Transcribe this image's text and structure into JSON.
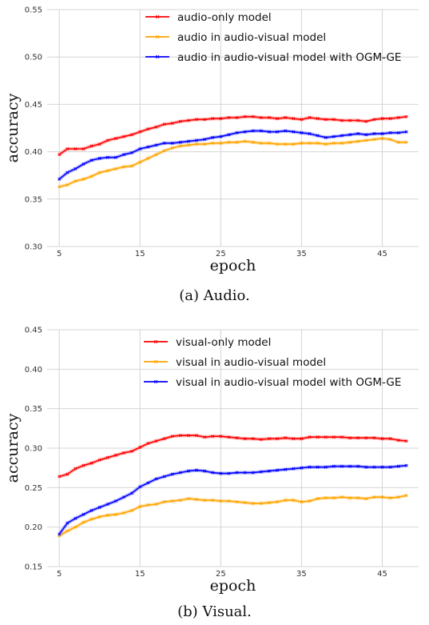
{
  "chart_data": [
    {
      "type": "line",
      "caption": "(a) Audio.",
      "xlabel": "epoch",
      "ylabel": "accuracy",
      "xlim": [
        3.5,
        49.5
      ],
      "ylim": [
        0.3,
        0.55
      ],
      "xticks": [
        "5",
        "15",
        "25",
        "35",
        "45"
      ],
      "yticks": [
        "0.30",
        "0.35",
        "0.40",
        "0.45",
        "0.50",
        "0.55"
      ],
      "grid": true,
      "legend_position": "top",
      "x": [
        5,
        6,
        7,
        8,
        9,
        10,
        11,
        12,
        13,
        14,
        15,
        16,
        17,
        18,
        19,
        20,
        21,
        22,
        23,
        24,
        25,
        26,
        27,
        28,
        29,
        30,
        31,
        32,
        33,
        34,
        35,
        36,
        37,
        38,
        39,
        40,
        41,
        42,
        43,
        44,
        45,
        46,
        47,
        48
      ],
      "series": [
        {
          "name": "audio-only model",
          "color": "#ff0000",
          "values": [
            0.397,
            0.403,
            0.403,
            0.403,
            0.406,
            0.408,
            0.412,
            0.414,
            0.416,
            0.418,
            0.421,
            0.424,
            0.426,
            0.429,
            0.43,
            0.432,
            0.433,
            0.434,
            0.434,
            0.435,
            0.435,
            0.436,
            0.436,
            0.437,
            0.437,
            0.436,
            0.436,
            0.435,
            0.436,
            0.435,
            0.434,
            0.436,
            0.435,
            0.434,
            0.434,
            0.433,
            0.433,
            0.433,
            0.432,
            0.434,
            0.435,
            0.435,
            0.436,
            0.437
          ]
        },
        {
          "name": "audio in audio-visual model",
          "color": "#ffa500",
          "values": [
            0.363,
            0.365,
            0.369,
            0.371,
            0.374,
            0.378,
            0.38,
            0.382,
            0.384,
            0.385,
            0.389,
            0.393,
            0.397,
            0.401,
            0.404,
            0.406,
            0.407,
            0.408,
            0.408,
            0.409,
            0.409,
            0.41,
            0.41,
            0.411,
            0.41,
            0.409,
            0.409,
            0.408,
            0.408,
            0.408,
            0.409,
            0.409,
            0.409,
            0.408,
            0.409,
            0.409,
            0.41,
            0.411,
            0.412,
            0.413,
            0.414,
            0.413,
            0.41,
            0.41
          ]
        },
        {
          "name": "audio in audio-visual model with OGM-GE",
          "color": "#0000ff",
          "values": [
            0.371,
            0.378,
            0.382,
            0.387,
            0.391,
            0.393,
            0.394,
            0.394,
            0.397,
            0.399,
            0.403,
            0.405,
            0.407,
            0.409,
            0.409,
            0.41,
            0.411,
            0.412,
            0.413,
            0.415,
            0.416,
            0.418,
            0.42,
            0.421,
            0.422,
            0.422,
            0.421,
            0.421,
            0.422,
            0.421,
            0.42,
            0.419,
            0.417,
            0.415,
            0.416,
            0.417,
            0.418,
            0.419,
            0.418,
            0.419,
            0.419,
            0.42,
            0.42,
            0.421
          ]
        }
      ]
    },
    {
      "type": "line",
      "caption": "(b) Visual.",
      "xlabel": "epoch",
      "ylabel": "accuracy",
      "xlim": [
        3.5,
        49.5
      ],
      "ylim": [
        0.15,
        0.45
      ],
      "xticks": [
        "5",
        "15",
        "25",
        "35",
        "45"
      ],
      "yticks": [
        "0.15",
        "0.20",
        "0.25",
        "0.30",
        "0.35",
        "0.40",
        "0.45"
      ],
      "grid": true,
      "legend_position": "top",
      "x": [
        5,
        6,
        7,
        8,
        9,
        10,
        11,
        12,
        13,
        14,
        15,
        16,
        17,
        18,
        19,
        20,
        21,
        22,
        23,
        24,
        25,
        26,
        27,
        28,
        29,
        30,
        31,
        32,
        33,
        34,
        35,
        36,
        37,
        38,
        39,
        40,
        41,
        42,
        43,
        44,
        45,
        46,
        47,
        48
      ],
      "series": [
        {
          "name": "visual-only model",
          "color": "#ff0000",
          "values": [
            0.264,
            0.267,
            0.274,
            0.278,
            0.281,
            0.285,
            0.288,
            0.291,
            0.294,
            0.296,
            0.301,
            0.306,
            0.309,
            0.312,
            0.315,
            0.316,
            0.316,
            0.316,
            0.314,
            0.315,
            0.315,
            0.314,
            0.313,
            0.312,
            0.312,
            0.311,
            0.312,
            0.312,
            0.313,
            0.312,
            0.312,
            0.314,
            0.314,
            0.314,
            0.314,
            0.314,
            0.313,
            0.313,
            0.313,
            0.313,
            0.312,
            0.312,
            0.31,
            0.309
          ]
        },
        {
          "name": "visual in audio-visual model",
          "color": "#ffa500",
          "values": [
            0.189,
            0.195,
            0.2,
            0.206,
            0.21,
            0.213,
            0.215,
            0.216,
            0.218,
            0.221,
            0.226,
            0.228,
            0.229,
            0.232,
            0.233,
            0.234,
            0.236,
            0.235,
            0.234,
            0.234,
            0.233,
            0.233,
            0.232,
            0.231,
            0.23,
            0.23,
            0.231,
            0.232,
            0.234,
            0.234,
            0.232,
            0.233,
            0.236,
            0.237,
            0.237,
            0.238,
            0.237,
            0.237,
            0.236,
            0.238,
            0.238,
            0.237,
            0.238,
            0.24
          ]
        },
        {
          "name": "visual in audio-visual model with OGM-GE",
          "color": "#0000ff",
          "values": [
            0.191,
            0.205,
            0.211,
            0.216,
            0.221,
            0.225,
            0.229,
            0.233,
            0.238,
            0.243,
            0.251,
            0.256,
            0.261,
            0.264,
            0.267,
            0.269,
            0.271,
            0.272,
            0.271,
            0.269,
            0.268,
            0.268,
            0.269,
            0.269,
            0.269,
            0.27,
            0.271,
            0.272,
            0.273,
            0.274,
            0.275,
            0.276,
            0.276,
            0.276,
            0.277,
            0.277,
            0.277,
            0.277,
            0.276,
            0.276,
            0.276,
            0.276,
            0.277,
            0.278
          ]
        }
      ]
    }
  ]
}
